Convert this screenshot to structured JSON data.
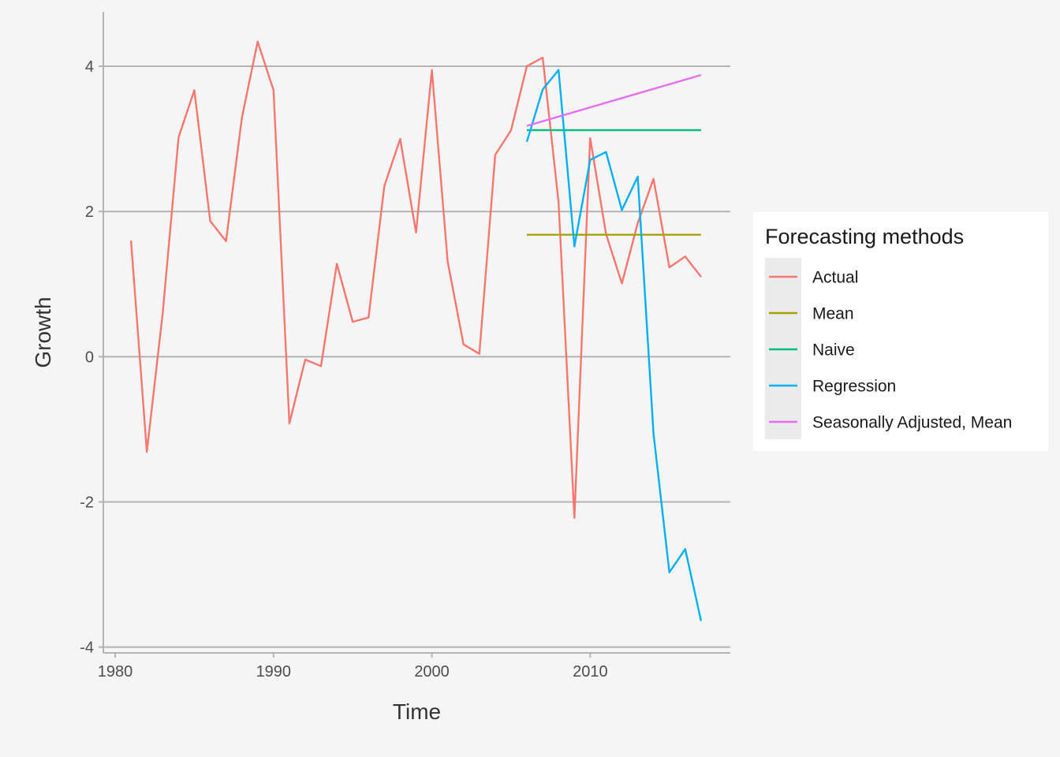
{
  "chart_data": {
    "type": "line",
    "title": "",
    "xlabel": "Time",
    "ylabel": "Growth",
    "xlim": [
      1979.25,
      2018.85
    ],
    "ylim": [
      -4.08,
      4.75
    ],
    "xticks": [
      1980,
      1990,
      2000,
      2010
    ],
    "yticks": [
      -4,
      -2,
      0,
      2,
      4
    ],
    "grid": "horizontal major",
    "legend": {
      "title": "Forecasting methods",
      "position": "right"
    },
    "series": [
      {
        "name": "Actual",
        "color": "#F8766D",
        "x": [
          1981,
          1982,
          1983,
          1984,
          1985,
          1986,
          1987,
          1988,
          1989,
          1990,
          1991,
          1992,
          1993,
          1994,
          1995,
          1996,
          1997,
          1998,
          1999,
          2000,
          2001,
          2002,
          2003,
          2004,
          2005,
          2006,
          2007,
          2008,
          2009,
          2010,
          2011,
          2012,
          2013,
          2014,
          2015,
          2016,
          2017
        ],
        "values": [
          1.6,
          -1.31,
          0.6,
          3.02,
          3.67,
          1.87,
          1.59,
          3.29,
          4.34,
          3.67,
          -0.92,
          -0.04,
          -0.13,
          1.28,
          0.48,
          0.54,
          2.35,
          3.0,
          1.71,
          3.95,
          1.31,
          0.17,
          0.04,
          2.78,
          3.12,
          4.0,
          4.12,
          2.13,
          -2.22,
          3.01,
          1.69,
          1.01,
          1.84,
          2.45,
          1.23,
          1.38,
          1.1
        ]
      },
      {
        "name": "Mean",
        "color": "#A3A500",
        "x": [
          2006,
          2017
        ],
        "values": [
          1.68,
          1.68
        ]
      },
      {
        "name": "Naive",
        "color": "#00BF7D",
        "x": [
          2006,
          2017
        ],
        "values": [
          3.12,
          3.12
        ]
      },
      {
        "name": "Regression",
        "color": "#00B0F6",
        "x": [
          2006,
          2007,
          2008,
          2009,
          2010,
          2011,
          2012,
          2013,
          2014,
          2015,
          2016,
          2017
        ],
        "values": [
          2.96,
          3.68,
          3.95,
          1.52,
          2.71,
          2.82,
          2.02,
          2.48,
          -1.06,
          -2.97,
          -2.65,
          -3.64
        ]
      },
      {
        "name": "Seasonally Adjusted, Mean",
        "color": "#E76BF3",
        "x": [
          2006,
          2017
        ],
        "values": [
          3.18,
          3.88
        ]
      }
    ]
  }
}
